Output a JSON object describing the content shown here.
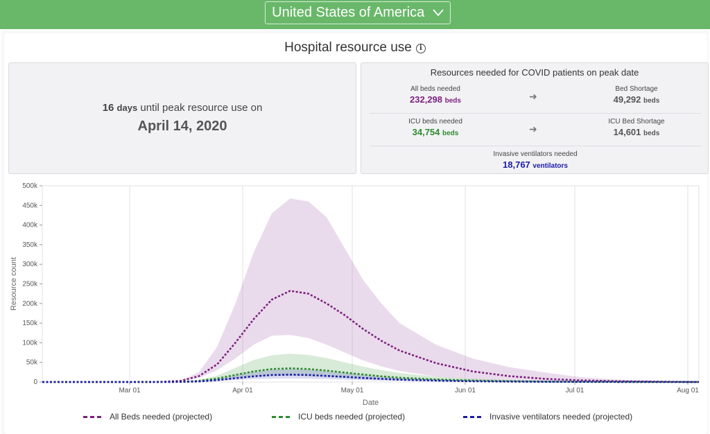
{
  "header": {
    "country": "United States of America"
  },
  "section": {
    "title": "Hospital resource use"
  },
  "peak": {
    "days": "16",
    "days_unit": "days",
    "text": "until peak resource use on",
    "date": "April 14, 2020"
  },
  "resources": {
    "title": "Resources needed for COVID patients on peak date",
    "all_beds_label": "All beds needed",
    "all_beds_value": "232,298",
    "beds_unit": "beds",
    "bed_shortage_label": "Bed Shortage",
    "bed_shortage_value": "49,292",
    "icu_beds_label": "ICU beds needed",
    "icu_beds_value": "34,754",
    "icu_shortage_label": "ICU Bed Shortage",
    "icu_shortage_value": "14,601",
    "vent_label": "Invasive ventilators needed",
    "vent_value": "18,767",
    "vent_unit": "ventilators"
  },
  "colors": {
    "header_green": "#69b86a",
    "all_beds": "#7b1f7e",
    "icu": "#2e8b2e",
    "ventilators": "#1a1aa8"
  },
  "chart_data": {
    "type": "line",
    "xlabel": "Date",
    "ylabel": "Resource count",
    "ylim": [
      0,
      500000
    ],
    "y_ticks": [
      "0",
      "50k",
      "100k",
      "150k",
      "200k",
      "250k",
      "300k",
      "350k",
      "400k",
      "450k",
      "500k"
    ],
    "x_ticks": [
      "Mar 01",
      "Apr 01",
      "May 01",
      "Jun 01",
      "Jul 01",
      "Aug 01"
    ],
    "grid": true,
    "legend_position": "bottom",
    "series": [
      {
        "name": "All Beds needed (projected)",
        "color": "#7b1f7e",
        "points": [
          [
            "2020-02-01",
            0
          ],
          [
            "2020-03-01",
            0
          ],
          [
            "2020-03-10",
            500
          ],
          [
            "2020-03-15",
            3000
          ],
          [
            "2020-03-20",
            15000
          ],
          [
            "2020-03-25",
            45000
          ],
          [
            "2020-03-30",
            100000
          ],
          [
            "2020-04-04",
            160000
          ],
          [
            "2020-04-09",
            210000
          ],
          [
            "2020-04-14",
            232298
          ],
          [
            "2020-04-19",
            225000
          ],
          [
            "2020-04-24",
            200000
          ],
          [
            "2020-04-29",
            170000
          ],
          [
            "2020-05-04",
            135000
          ],
          [
            "2020-05-09",
            105000
          ],
          [
            "2020-05-14",
            80000
          ],
          [
            "2020-05-24",
            48000
          ],
          [
            "2020-06-03",
            27000
          ],
          [
            "2020-06-13",
            15000
          ],
          [
            "2020-06-23",
            8000
          ],
          [
            "2020-07-03",
            4000
          ],
          [
            "2020-07-13",
            2000
          ],
          [
            "2020-07-23",
            1000
          ],
          [
            "2020-08-04",
            0
          ]
        ],
        "band_upper": [
          [
            "2020-02-01",
            0
          ],
          [
            "2020-03-01",
            0
          ],
          [
            "2020-03-10",
            600
          ],
          [
            "2020-03-15",
            4000
          ],
          [
            "2020-03-20",
            25000
          ],
          [
            "2020-03-25",
            90000
          ],
          [
            "2020-03-30",
            200000
          ],
          [
            "2020-04-04",
            330000
          ],
          [
            "2020-04-09",
            430000
          ],
          [
            "2020-04-14",
            468000
          ],
          [
            "2020-04-19",
            460000
          ],
          [
            "2020-04-24",
            420000
          ],
          [
            "2020-04-29",
            340000
          ],
          [
            "2020-05-04",
            260000
          ],
          [
            "2020-05-09",
            200000
          ],
          [
            "2020-05-14",
            150000
          ],
          [
            "2020-05-24",
            95000
          ],
          [
            "2020-06-03",
            60000
          ],
          [
            "2020-06-13",
            38000
          ],
          [
            "2020-06-23",
            24000
          ],
          [
            "2020-07-03",
            12000
          ],
          [
            "2020-07-13",
            6000
          ],
          [
            "2020-07-23",
            3000
          ],
          [
            "2020-08-04",
            0
          ]
        ],
        "band_lower": [
          [
            "2020-02-01",
            0
          ],
          [
            "2020-03-01",
            0
          ],
          [
            "2020-03-10",
            400
          ],
          [
            "2020-03-15",
            2000
          ],
          [
            "2020-03-20",
            10000
          ],
          [
            "2020-03-25",
            30000
          ],
          [
            "2020-03-30",
            60000
          ],
          [
            "2020-04-04",
            95000
          ],
          [
            "2020-04-09",
            118000
          ],
          [
            "2020-04-14",
            120000
          ],
          [
            "2020-04-19",
            112000
          ],
          [
            "2020-04-24",
            95000
          ],
          [
            "2020-04-29",
            75000
          ],
          [
            "2020-05-04",
            55000
          ],
          [
            "2020-05-09",
            40000
          ],
          [
            "2020-05-14",
            28000
          ],
          [
            "2020-05-24",
            14000
          ],
          [
            "2020-06-03",
            7000
          ],
          [
            "2020-06-13",
            3500
          ],
          [
            "2020-06-23",
            1500
          ],
          [
            "2020-07-03",
            700
          ],
          [
            "2020-07-13",
            300
          ],
          [
            "2020-07-23",
            100
          ],
          [
            "2020-08-04",
            0
          ]
        ]
      },
      {
        "name": "ICU beds needed (projected)",
        "color": "#2e8b2e",
        "points": [
          [
            "2020-02-01",
            0
          ],
          [
            "2020-03-01",
            0
          ],
          [
            "2020-03-10",
            100
          ],
          [
            "2020-03-15",
            600
          ],
          [
            "2020-03-20",
            3000
          ],
          [
            "2020-03-25",
            9000
          ],
          [
            "2020-03-30",
            18000
          ],
          [
            "2020-04-04",
            27000
          ],
          [
            "2020-04-09",
            33000
          ],
          [
            "2020-04-14",
            34754
          ],
          [
            "2020-04-19",
            33000
          ],
          [
            "2020-04-24",
            29000
          ],
          [
            "2020-04-29",
            24000
          ],
          [
            "2020-05-04",
            19000
          ],
          [
            "2020-05-09",
            14500
          ],
          [
            "2020-05-14",
            11000
          ],
          [
            "2020-05-24",
            6500
          ],
          [
            "2020-06-03",
            3800
          ],
          [
            "2020-06-13",
            2100
          ],
          [
            "2020-06-23",
            1100
          ],
          [
            "2020-07-03",
            500
          ],
          [
            "2020-07-13",
            200
          ],
          [
            "2020-07-23",
            80
          ],
          [
            "2020-08-04",
            0
          ]
        ],
        "band_upper": [
          [
            "2020-02-01",
            0
          ],
          [
            "2020-03-01",
            0
          ],
          [
            "2020-03-10",
            150
          ],
          [
            "2020-03-15",
            900
          ],
          [
            "2020-03-20",
            5000
          ],
          [
            "2020-03-25",
            16000
          ],
          [
            "2020-03-30",
            36000
          ],
          [
            "2020-04-04",
            56000
          ],
          [
            "2020-04-09",
            68000
          ],
          [
            "2020-04-14",
            72000
          ],
          [
            "2020-04-19",
            69000
          ],
          [
            "2020-04-24",
            61000
          ],
          [
            "2020-04-29",
            50000
          ],
          [
            "2020-05-04",
            39000
          ],
          [
            "2020-05-09",
            30000
          ],
          [
            "2020-05-14",
            23000
          ],
          [
            "2020-05-24",
            14000
          ],
          [
            "2020-06-03",
            8500
          ],
          [
            "2020-06-13",
            5000
          ],
          [
            "2020-06-23",
            2800
          ],
          [
            "2020-07-03",
            1400
          ],
          [
            "2020-07-13",
            600
          ],
          [
            "2020-07-23",
            250
          ],
          [
            "2020-08-04",
            0
          ]
        ],
        "band_lower": [
          [
            "2020-02-01",
            0
          ],
          [
            "2020-03-01",
            0
          ],
          [
            "2020-03-10",
            60
          ],
          [
            "2020-03-15",
            300
          ],
          [
            "2020-03-20",
            1500
          ],
          [
            "2020-03-25",
            4500
          ],
          [
            "2020-03-30",
            9000
          ],
          [
            "2020-04-04",
            13000
          ],
          [
            "2020-04-09",
            15500
          ],
          [
            "2020-04-14",
            16000
          ],
          [
            "2020-04-19",
            15000
          ],
          [
            "2020-04-24",
            13000
          ],
          [
            "2020-04-29",
            10500
          ],
          [
            "2020-05-04",
            8000
          ],
          [
            "2020-05-09",
            6000
          ],
          [
            "2020-05-14",
            4500
          ],
          [
            "2020-05-24",
            2500
          ],
          [
            "2020-06-03",
            1300
          ],
          [
            "2020-06-13",
            700
          ],
          [
            "2020-06-23",
            350
          ],
          [
            "2020-07-03",
            150
          ],
          [
            "2020-07-13",
            60
          ],
          [
            "2020-07-23",
            20
          ],
          [
            "2020-08-04",
            0
          ]
        ]
      },
      {
        "name": "Invasive ventilators needed (projected)",
        "color": "#1a1aa8",
        "points": [
          [
            "2020-02-01",
            0
          ],
          [
            "2020-03-01",
            0
          ],
          [
            "2020-03-10",
            60
          ],
          [
            "2020-03-15",
            300
          ],
          [
            "2020-03-20",
            1500
          ],
          [
            "2020-03-25",
            4800
          ],
          [
            "2020-03-30",
            9800
          ],
          [
            "2020-04-04",
            14500
          ],
          [
            "2020-04-09",
            17800
          ],
          [
            "2020-04-14",
            18767
          ],
          [
            "2020-04-19",
            17800
          ],
          [
            "2020-04-24",
            15600
          ],
          [
            "2020-04-29",
            13000
          ],
          [
            "2020-05-04",
            10300
          ],
          [
            "2020-05-09",
            7900
          ],
          [
            "2020-05-14",
            6000
          ],
          [
            "2020-05-24",
            3500
          ],
          [
            "2020-06-03",
            2000
          ],
          [
            "2020-06-13",
            1100
          ],
          [
            "2020-06-23",
            600
          ],
          [
            "2020-07-03",
            280
          ],
          [
            "2020-07-13",
            110
          ],
          [
            "2020-07-23",
            40
          ],
          [
            "2020-08-04",
            0
          ]
        ],
        "band_upper": [
          [
            "2020-02-01",
            0
          ],
          [
            "2020-03-01",
            0
          ],
          [
            "2020-03-10",
            90
          ],
          [
            "2020-03-15",
            450
          ],
          [
            "2020-03-20",
            2500
          ],
          [
            "2020-03-25",
            8000
          ],
          [
            "2020-03-30",
            17000
          ],
          [
            "2020-04-04",
            26000
          ],
          [
            "2020-04-09",
            31000
          ],
          [
            "2020-04-14",
            33000
          ],
          [
            "2020-04-19",
            31500
          ],
          [
            "2020-04-24",
            28000
          ],
          [
            "2020-04-29",
            23000
          ],
          [
            "2020-05-04",
            18000
          ],
          [
            "2020-05-09",
            14000
          ],
          [
            "2020-05-14",
            10500
          ],
          [
            "2020-05-24",
            6500
          ],
          [
            "2020-06-03",
            3900
          ],
          [
            "2020-06-13",
            2300
          ],
          [
            "2020-06-23",
            1300
          ],
          [
            "2020-07-03",
            650
          ],
          [
            "2020-07-13",
            280
          ],
          [
            "2020-07-23",
            110
          ],
          [
            "2020-08-04",
            0
          ]
        ],
        "band_lower": [
          [
            "2020-02-01",
            0
          ],
          [
            "2020-03-01",
            0
          ],
          [
            "2020-03-10",
            30
          ],
          [
            "2020-03-15",
            150
          ],
          [
            "2020-03-20",
            800
          ],
          [
            "2020-03-25",
            2500
          ],
          [
            "2020-03-30",
            5000
          ],
          [
            "2020-04-04",
            7200
          ],
          [
            "2020-04-09",
            8600
          ],
          [
            "2020-04-14",
            9000
          ],
          [
            "2020-04-19",
            8500
          ],
          [
            "2020-04-24",
            7400
          ],
          [
            "2020-04-29",
            6000
          ],
          [
            "2020-05-04",
            4700
          ],
          [
            "2020-05-09",
            3500
          ],
          [
            "2020-05-14",
            2600
          ],
          [
            "2020-05-24",
            1500
          ],
          [
            "2020-06-03",
            800
          ],
          [
            "2020-06-13",
            430
          ],
          [
            "2020-06-23",
            220
          ],
          [
            "2020-07-03",
            100
          ],
          [
            "2020-07-13",
            40
          ],
          [
            "2020-07-23",
            15
          ],
          [
            "2020-08-04",
            0
          ]
        ]
      }
    ]
  }
}
